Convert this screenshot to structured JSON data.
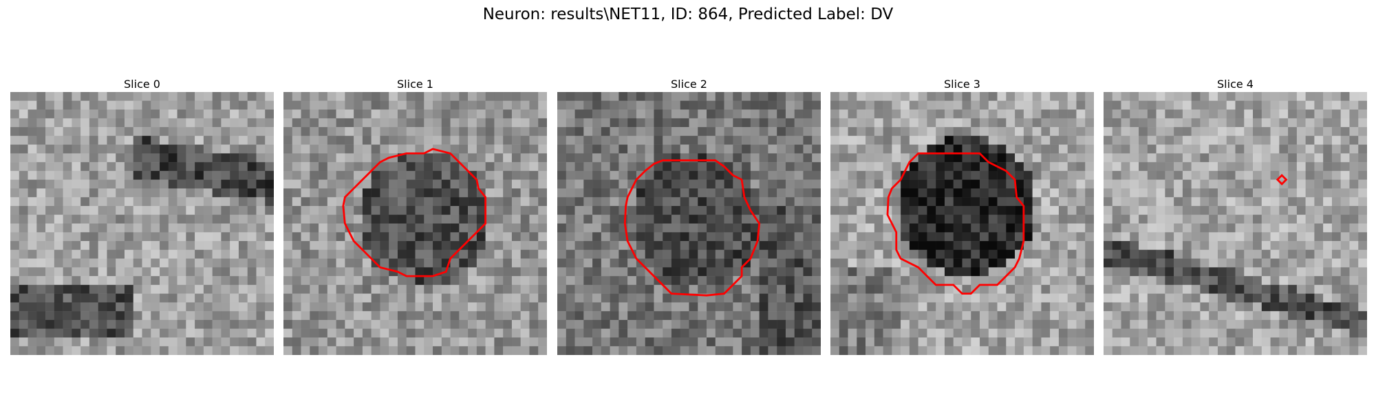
{
  "figure": {
    "title": "Neuron: results\\NET11, ID: 864, Predicted Label: DV"
  },
  "panels": [
    {
      "title": "Slice 0",
      "seed": 11,
      "base": 160,
      "dark": "top-band,bottom-left",
      "contour": false
    },
    {
      "title": "Slice 1",
      "seed": 27,
      "base": 150,
      "dark": "blob",
      "contour": true
    },
    {
      "title": "Slice 2",
      "seed": 43,
      "base": 120,
      "dark": "blob-soft",
      "contour": true
    },
    {
      "title": "Slice 3",
      "seed": 59,
      "base": 165,
      "dark": "blob-strong",
      "contour": true
    },
    {
      "title": "Slice 4",
      "seed": 71,
      "base": 165,
      "dark": "diagonal-band",
      "contour": false,
      "marker": true
    }
  ],
  "colors": {
    "contour": "#ff0000",
    "background": "#ffffff"
  }
}
